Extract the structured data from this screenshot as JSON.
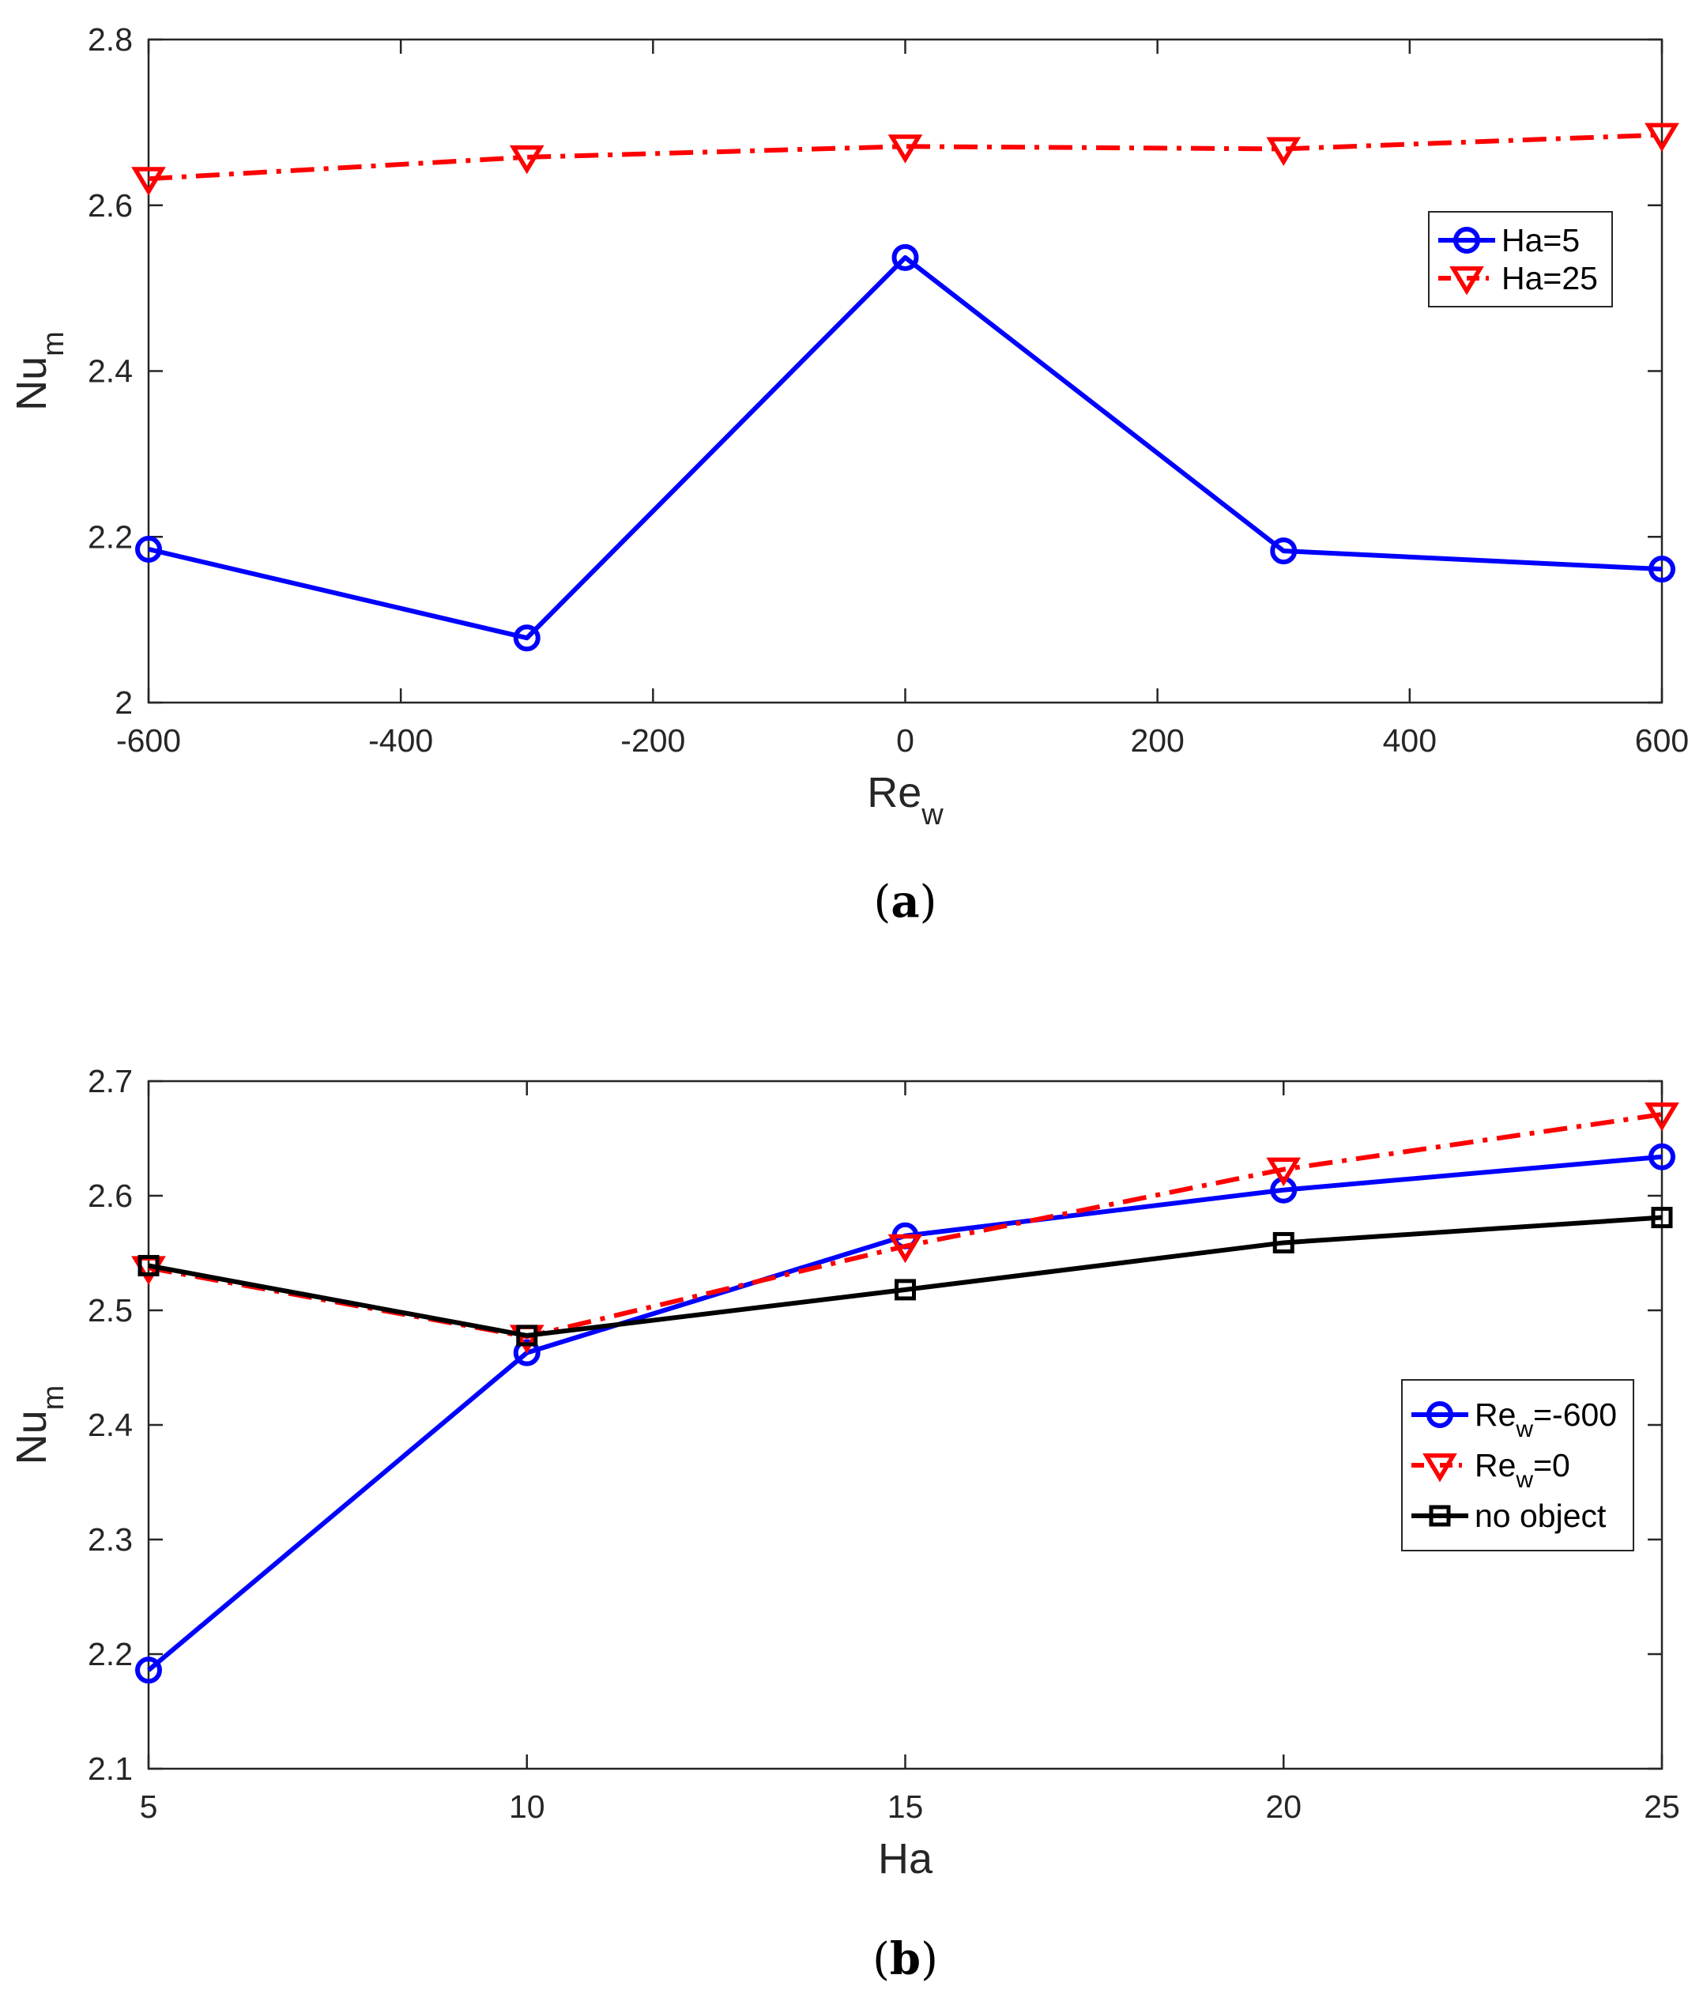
{
  "chart_data": [
    {
      "type": "line",
      "panel": "a",
      "panel_label_open": "(",
      "panel_label_letter": "a",
      "panel_label_close": ")",
      "xlabel_main": "Re",
      "xlabel_sub": "w",
      "ylabel_main": "Nu",
      "ylabel_sub": "m",
      "xlim": [
        -600,
        600
      ],
      "ylim": [
        2.0,
        2.8
      ],
      "xticks": [
        -600,
        -400,
        -200,
        0,
        200,
        400,
        600
      ],
      "xtick_labels": [
        "-600",
        "-400",
        "-200",
        "0",
        "200",
        "400",
        "600"
      ],
      "yticks": [
        2.0,
        2.2,
        2.4,
        2.6,
        2.8
      ],
      "ytick_labels": [
        "2",
        "2.2",
        "2.4",
        "2.6",
        "2.8"
      ],
      "grid": false,
      "legend_position": "upper-right",
      "series": [
        {
          "name_main": "Ha=5",
          "name_sub": "",
          "name_rest": "",
          "color": "#0000ff",
          "line": "solid",
          "marker": "circle",
          "x": [
            -600,
            -300,
            0,
            300,
            600
          ],
          "y": [
            2.185,
            2.078,
            2.537,
            2.183,
            2.161
          ]
        },
        {
          "name_main": "Ha=25",
          "name_sub": "",
          "name_rest": "",
          "color": "#ff0000",
          "line": "dashdot",
          "marker": "triangle-down",
          "x": [
            -600,
            -300,
            0,
            300,
            600
          ],
          "y": [
            2.632,
            2.658,
            2.671,
            2.668,
            2.685
          ]
        }
      ]
    },
    {
      "type": "line",
      "panel": "b",
      "panel_label_open": "(",
      "panel_label_letter": "b",
      "panel_label_close": ")",
      "xlabel_main": "Ha",
      "xlabel_sub": "",
      "ylabel_main": "Nu",
      "ylabel_sub": "m",
      "xlim": [
        5,
        25
      ],
      "ylim": [
        2.1,
        2.7
      ],
      "xticks": [
        5,
        10,
        15,
        20,
        25
      ],
      "xtick_labels": [
        "5",
        "10",
        "15",
        "20",
        "25"
      ],
      "yticks": [
        2.1,
        2.2,
        2.3,
        2.4,
        2.5,
        2.6,
        2.7
      ],
      "ytick_labels": [
        "2.1",
        "2.2",
        "2.3",
        "2.4",
        "2.5",
        "2.6",
        "2.7"
      ],
      "grid": false,
      "legend_position": "right",
      "series": [
        {
          "name_main": "Re",
          "name_sub": "w",
          "name_rest": "=-600",
          "color": "#0000ff",
          "line": "solid",
          "marker": "circle",
          "x": [
            5,
            10,
            15,
            20,
            25
          ],
          "y": [
            2.186,
            2.463,
            2.565,
            2.605,
            2.634
          ]
        },
        {
          "name_main": "Re",
          "name_sub": "w",
          "name_rest": "=0",
          "color": "#ff0000",
          "line": "dashdot",
          "marker": "triangle-down",
          "x": [
            5,
            10,
            15,
            20,
            25
          ],
          "y": [
            2.537,
            2.477,
            2.556,
            2.623,
            2.671
          ]
        },
        {
          "name_main": "no object",
          "name_sub": "",
          "name_rest": "",
          "color": "#000000",
          "line": "solid",
          "marker": "square",
          "x": [
            5,
            10,
            15,
            20,
            25
          ],
          "y": [
            2.539,
            2.478,
            2.518,
            2.559,
            2.581
          ]
        }
      ]
    }
  ]
}
